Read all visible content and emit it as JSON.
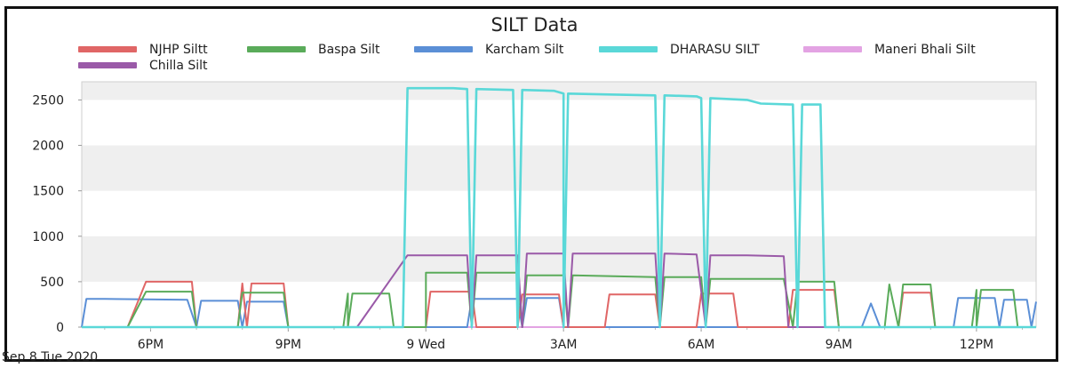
{
  "chart_data": {
    "type": "line",
    "title": "SILT Data",
    "xlabel": "",
    "ylabel": "",
    "ylim": [
      0,
      2700
    ],
    "yticks": [
      0,
      500,
      1000,
      1500,
      2000,
      2500
    ],
    "xlim": [
      16.5,
      37.3
    ],
    "x_unit": "hours since Sep 8 2020 00:00",
    "xticks": [
      {
        "x": 18,
        "label": "6PM"
      },
      {
        "x": 21,
        "label": "9PM"
      },
      {
        "x": 24,
        "label": "9 Wed"
      },
      {
        "x": 27,
        "label": "3AM"
      },
      {
        "x": 30,
        "label": "6AM"
      },
      {
        "x": 33,
        "label": "9AM"
      },
      {
        "x": 36,
        "label": "12PM"
      }
    ],
    "date_label": "Sep 8 Tue 2020",
    "grid": "horizontal bands",
    "legend_position": "top",
    "series": [
      {
        "name": "NJHP Siltt",
        "color": "#e06666",
        "points": [
          [
            16.5,
            0
          ],
          [
            17.5,
            0
          ],
          [
            17.9,
            500
          ],
          [
            18.9,
            500
          ],
          [
            19,
            0
          ],
          [
            19.9,
            0
          ],
          [
            20,
            480
          ],
          [
            20.1,
            0
          ],
          [
            20.2,
            480
          ],
          [
            20.9,
            480
          ],
          [
            21,
            0
          ],
          [
            24,
            0
          ],
          [
            24.1,
            390
          ],
          [
            25.0,
            390
          ],
          [
            25.1,
            0
          ],
          [
            26.0,
            0
          ],
          [
            26.1,
            360
          ],
          [
            26.9,
            360
          ],
          [
            27,
            0
          ],
          [
            27.9,
            0
          ],
          [
            28.0,
            360
          ],
          [
            29.0,
            360
          ],
          [
            29.1,
            0
          ],
          [
            29.9,
            0
          ],
          [
            30.0,
            370
          ],
          [
            30.7,
            370
          ],
          [
            30.8,
            0
          ],
          [
            31.9,
            0
          ],
          [
            32.0,
            410
          ],
          [
            32.9,
            410
          ],
          [
            33,
            0
          ],
          [
            34.3,
            0
          ],
          [
            34.4,
            380
          ],
          [
            35.0,
            380
          ],
          [
            35.1,
            0
          ],
          [
            37.3,
            0
          ]
        ]
      },
      {
        "name": "Baspa  Silt",
        "color": "#5aab5a",
        "points": [
          [
            16.5,
            0
          ],
          [
            17.5,
            0
          ],
          [
            17.9,
            390
          ],
          [
            18.9,
            390
          ],
          [
            19,
            0
          ],
          [
            19.9,
            0
          ],
          [
            20,
            380
          ],
          [
            20.9,
            380
          ],
          [
            21,
            0
          ],
          [
            22.2,
            0
          ],
          [
            22.3,
            370
          ],
          [
            22.3,
            0
          ],
          [
            22.4,
            370
          ],
          [
            23.2,
            370
          ],
          [
            23.3,
            0
          ],
          [
            24,
            0
          ],
          [
            24.0,
            600
          ],
          [
            24.9,
            600
          ],
          [
            25.0,
            0
          ],
          [
            25.1,
            600
          ],
          [
            26.0,
            600
          ],
          [
            26.1,
            0
          ],
          [
            26.2,
            570
          ],
          [
            27.0,
            570
          ],
          [
            27.1,
            0
          ],
          [
            27.2,
            570
          ],
          [
            29.0,
            550
          ],
          [
            29.1,
            0
          ],
          [
            29.2,
            550
          ],
          [
            30.0,
            550
          ],
          [
            30.1,
            0
          ],
          [
            30.2,
            530
          ],
          [
            31.8,
            530
          ],
          [
            32.0,
            0
          ],
          [
            32.1,
            500
          ],
          [
            32.9,
            500
          ],
          [
            33,
            0
          ],
          [
            34.0,
            0
          ],
          [
            34.1,
            470
          ],
          [
            34.3,
            0
          ],
          [
            34.4,
            470
          ],
          [
            35.0,
            470
          ],
          [
            35.1,
            0
          ],
          [
            35.9,
            0
          ],
          [
            36.0,
            410
          ],
          [
            36.0,
            0
          ],
          [
            36.1,
            410
          ],
          [
            36.8,
            410
          ],
          [
            36.9,
            0
          ],
          [
            37.3,
            0
          ]
        ]
      },
      {
        "name": "Karcham Silt",
        "color": "#5b8fd6",
        "points": [
          [
            16.5,
            0
          ],
          [
            16.6,
            310
          ],
          [
            17.0,
            310
          ],
          [
            18.8,
            300
          ],
          [
            19,
            0
          ],
          [
            19.1,
            290
          ],
          [
            19.9,
            290
          ],
          [
            20,
            0
          ],
          [
            20.1,
            280
          ],
          [
            20.9,
            280
          ],
          [
            21,
            0
          ],
          [
            24.9,
            0
          ],
          [
            25.0,
            310
          ],
          [
            26.0,
            310
          ],
          [
            26.1,
            0
          ],
          [
            26.2,
            320
          ],
          [
            26.9,
            320
          ],
          [
            27,
            0
          ],
          [
            33.5,
            0
          ],
          [
            33.7,
            260
          ],
          [
            33.9,
            0
          ],
          [
            35.5,
            0
          ],
          [
            35.6,
            320
          ],
          [
            36.4,
            320
          ],
          [
            36.5,
            0
          ],
          [
            36.6,
            300
          ],
          [
            37.1,
            300
          ],
          [
            37.2,
            0
          ],
          [
            37.3,
            280
          ]
        ]
      },
      {
        "name": "DHARASU SILT",
        "color": "#5ad8d8",
        "points": [
          [
            16.5,
            0
          ],
          [
            23.5,
            0
          ],
          [
            23.6,
            2630
          ],
          [
            24.6,
            2630
          ],
          [
            24.9,
            2620
          ],
          [
            25.0,
            0
          ],
          [
            25.1,
            2620
          ],
          [
            25.9,
            2610
          ],
          [
            26.0,
            0
          ],
          [
            26.1,
            2610
          ],
          [
            26.8,
            2600
          ],
          [
            27.0,
            2570
          ],
          [
            27.0,
            0
          ],
          [
            27.1,
            2570
          ],
          [
            28.0,
            2560
          ],
          [
            29.0,
            2550
          ],
          [
            29.1,
            0
          ],
          [
            29.2,
            2550
          ],
          [
            29.9,
            2540
          ],
          [
            30.0,
            2520
          ],
          [
            30.1,
            0
          ],
          [
            30.2,
            2520
          ],
          [
            31.0,
            2500
          ],
          [
            31.3,
            2460
          ],
          [
            32.0,
            2450
          ],
          [
            32.1,
            0
          ],
          [
            32.2,
            2450
          ],
          [
            32.6,
            2450
          ],
          [
            32.7,
            0
          ],
          [
            37.3,
            0
          ]
        ]
      },
      {
        "name": "Maneri Bhali Silt",
        "color": "#e3a3e3",
        "points": [
          [
            16.5,
            0
          ],
          [
            37.3,
            0
          ]
        ]
      },
      {
        "name": "Chilla Silt",
        "color": "#9a5aa8",
        "points": [
          [
            16.5,
            0
          ],
          [
            22.5,
            0
          ],
          [
            23.6,
            790
          ],
          [
            24.9,
            790
          ],
          [
            25.0,
            0
          ],
          [
            25.1,
            790
          ],
          [
            26.0,
            790
          ],
          [
            26.1,
            0
          ],
          [
            26.2,
            810
          ],
          [
            27.0,
            810
          ],
          [
            27.1,
            0
          ],
          [
            27.2,
            810
          ],
          [
            28.0,
            810
          ],
          [
            29.0,
            810
          ],
          [
            29.1,
            0
          ],
          [
            29.2,
            810
          ],
          [
            29.9,
            800
          ],
          [
            30.1,
            0
          ],
          [
            30.2,
            790
          ],
          [
            31.0,
            790
          ],
          [
            31.8,
            780
          ],
          [
            31.9,
            0
          ],
          [
            37.3,
            0
          ]
        ]
      }
    ]
  }
}
